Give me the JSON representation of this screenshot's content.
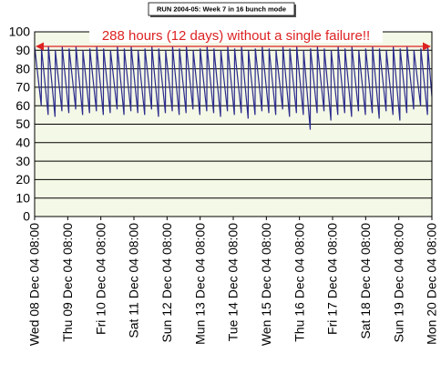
{
  "chart_data": {
    "type": "line",
    "title": "RUN 2004-05: Week 7 in 16 bunch mode",
    "annotation": "288 hours (12 days) without a single failure!!",
    "xlim": [
      0,
      288
    ],
    "xticks": [
      {
        "value": 0,
        "label": "Wed 08 Dec 04 08:00"
      },
      {
        "value": 24,
        "label": "Thu 09 Dec 04 08:00"
      },
      {
        "value": 48,
        "label": "Fri 10 Dec 04 08:00"
      },
      {
        "value": 72,
        "label": "Sat 11 Dec 04 08:00"
      },
      {
        "value": 96,
        "label": "Sun 12 Dec 04 08:00"
      },
      {
        "value": 120,
        "label": "Mun 13 Dec 04 08:00"
      },
      {
        "value": 144,
        "label": "Tue 14 Dec 04 08:00"
      },
      {
        "value": 168,
        "label": "Wen 15 Dec 04 08:00"
      },
      {
        "value": 192,
        "label": "Thu 16 Dec 04 08:00"
      },
      {
        "value": 216,
        "label": "Fri 17 Dec 04 08:00"
      },
      {
        "value": 240,
        "label": "Sat 18 Dec 04 08:00"
      },
      {
        "value": 264,
        "label": "Sun 19 Dec 04 08:00"
      },
      {
        "value": 288,
        "label": "Mon 20 Dec 04 08:00"
      }
    ],
    "ylim": [
      0,
      100
    ],
    "yticks": [
      0,
      10,
      20,
      30,
      40,
      50,
      60,
      70,
      80,
      90,
      100
    ],
    "grid": true,
    "series": [
      {
        "color": "#2b2b8c",
        "x": [
          0,
          4.8,
          5,
          9.8,
          10,
          14.8,
          15,
          19.8,
          20,
          24.8,
          25,
          29.8,
          30,
          34.8,
          35,
          39.8,
          40,
          44.8,
          45,
          49.8,
          50,
          54.8,
          55,
          59.8,
          60,
          64.8,
          65,
          69.8,
          70,
          74.8,
          75,
          79.8,
          80,
          84.8,
          85,
          89.8,
          90,
          94.8,
          95,
          99.8,
          100,
          104.8,
          105,
          109.8,
          110,
          114.8,
          115,
          119.8,
          120,
          124.8,
          125,
          129.8,
          130,
          134.8,
          135,
          139.8,
          140,
          144.8,
          145,
          149.8,
          150,
          154.8,
          155,
          159.8,
          160,
          164.8,
          165,
          169.8,
          170,
          174.8,
          175,
          179.8,
          180,
          184.8,
          185,
          189.8,
          190,
          194.8,
          195,
          199.8,
          200,
          204.8,
          205,
          209.8,
          210,
          214.8,
          215,
          219.8,
          220,
          224.8,
          225,
          229.8,
          230,
          234.8,
          235,
          239.8,
          240,
          244.8,
          245,
          249.8,
          250,
          254.8,
          255,
          259.8,
          260,
          264.8,
          265,
          269.8,
          270,
          274.8,
          275,
          279.8,
          280,
          284.8,
          285,
          288
        ],
        "values": [
          92,
          60,
          91,
          55,
          92,
          54,
          90,
          57,
          92,
          56,
          91,
          58,
          92,
          55,
          90,
          56,
          91,
          57,
          92,
          55,
          91,
          56,
          90,
          58,
          92,
          55,
          91,
          57,
          92,
          56,
          90,
          55,
          91,
          58,
          92,
          54,
          91,
          56,
          90,
          57,
          92,
          55,
          91,
          56,
          92,
          58,
          90,
          55,
          91,
          57,
          92,
          56,
          91,
          54,
          90,
          57,
          92,
          55,
          91,
          56,
          92,
          53,
          90,
          55,
          91,
          57,
          92,
          56,
          91,
          55,
          90,
          58,
          92,
          54,
          91,
          56,
          92,
          55,
          90,
          47,
          91,
          56,
          92,
          57,
          91,
          52,
          90,
          55,
          92,
          56,
          91,
          54,
          92,
          57,
          90,
          55,
          91,
          56,
          92,
          53,
          91,
          57,
          90,
          55,
          92,
          52,
          91,
          56,
          92,
          58,
          90,
          60,
          91,
          55,
          92,
          65
        ]
      }
    ]
  }
}
